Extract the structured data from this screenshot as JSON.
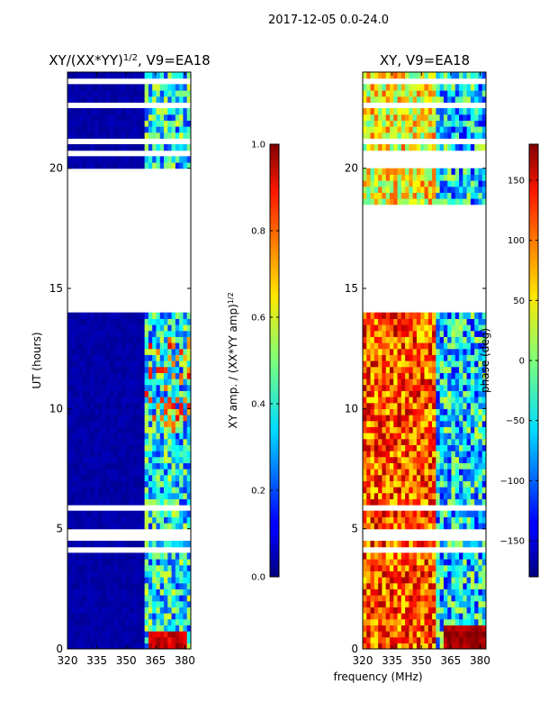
{
  "figure": {
    "suptitle": "2017-12-05 0.0-24.0",
    "xlabel": "frequency (MHz)"
  },
  "chart_data": [
    {
      "type": "heatmap",
      "title_main": "XY/(XX*YY)",
      "title_sup": "1/2",
      "title_rest": ", V9=EA18",
      "xlabel": "frequency (MHz)",
      "ylabel": "UT (hours)",
      "xlim": [
        320,
        383
      ],
      "ylim": [
        0,
        24
      ],
      "xticks": [
        320,
        335,
        350,
        365,
        380
      ],
      "yticks": [
        0,
        5,
        10,
        15,
        20
      ],
      "colorbar": {
        "label_main": "XY amp. / (XX*YY amp)",
        "label_sup": "1/2",
        "range": [
          0.0,
          1.0
        ],
        "ticks": [
          0.0,
          0.2,
          0.4,
          0.6,
          0.8,
          1.0
        ],
        "tick_labels": [
          "0.0",
          "0.2",
          "0.4",
          "0.6",
          "0.8",
          "1.0"
        ],
        "colormap": "jet"
      },
      "data_gaps_hours": [
        [
          23.4,
          23.75
        ],
        [
          23.0,
          23.1
        ],
        [
          22.55,
          22.65
        ],
        [
          21.45,
          21.6
        ],
        [
          20.9,
          21.2
        ],
        [
          20.6,
          20.7
        ],
        [
          18.6,
          20.0
        ],
        [
          13.9,
          18.6
        ],
        [
          6.9,
          7.0
        ],
        [
          5.8,
          6.0
        ],
        [
          4.6,
          4.95
        ],
        [
          4.05,
          4.25
        ],
        [
          3.75,
          3.85
        ]
      ],
      "notes": "amplitude near 0 (dark blue) below ~360 MHz; higher values 362-382 MHz; ~1.0 near 0.3-0.6 h"
    },
    {
      "type": "heatmap",
      "title": "XY, V9=EA18",
      "xlabel": "frequency (MHz)",
      "ylabel": "",
      "xlim": [
        320,
        383
      ],
      "ylim": [
        0,
        24
      ],
      "xticks": [
        320,
        335,
        350,
        365,
        380
      ],
      "yticks": [
        0,
        5,
        10,
        15,
        20
      ],
      "colorbar": {
        "label": "phase (deg)",
        "range": [
          -180,
          180
        ],
        "ticks": [
          -150,
          -100,
          -50,
          0,
          50,
          100,
          150
        ],
        "tick_labels": [
          "−150",
          "−100",
          "−50",
          "0",
          "50",
          "100",
          "150"
        ],
        "colormap": "jet"
      },
      "data_gaps_hours": [
        [
          23.6,
          23.8
        ],
        [
          22.55,
          22.65
        ],
        [
          21.0,
          21.3
        ],
        [
          20.0,
          20.7
        ],
        [
          13.9,
          18.6
        ],
        [
          6.9,
          7.0
        ],
        [
          5.8,
          6.0
        ],
        [
          4.6,
          4.95
        ],
        [
          4.05,
          4.25
        ]
      ],
      "notes": "phase mostly warm (0 to 150 deg) at low frequencies, cyan/blue above ~360 MHz"
    }
  ]
}
